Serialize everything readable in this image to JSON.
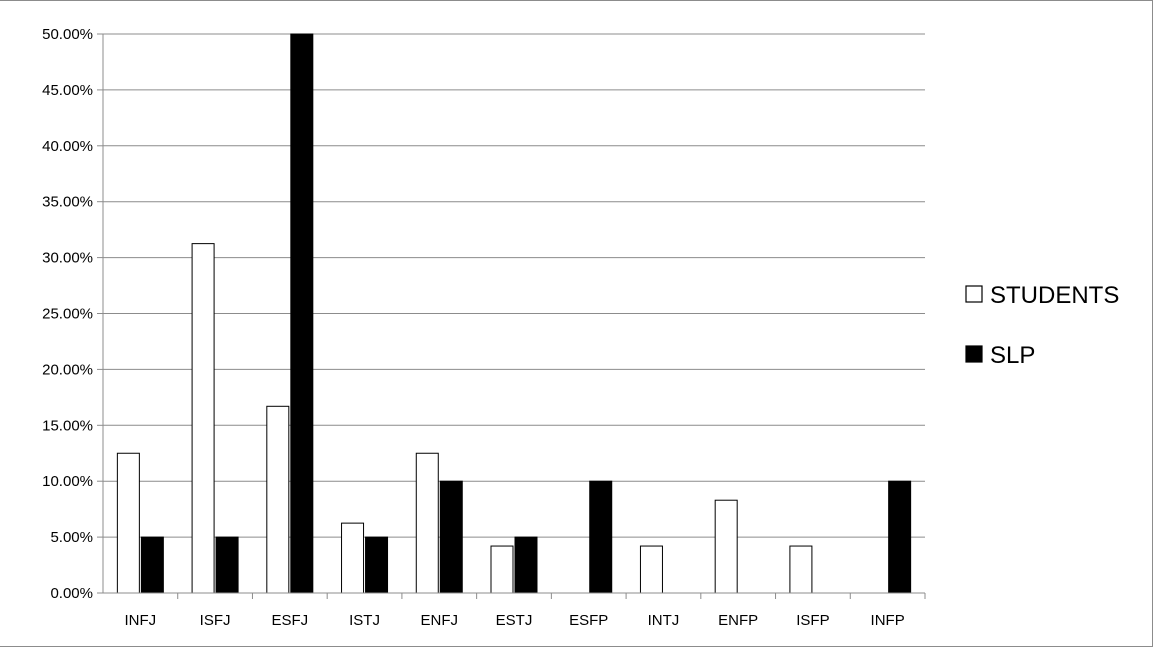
{
  "chart_data": {
    "type": "bar",
    "title": "",
    "xlabel": "",
    "ylabel": "",
    "ylim": [
      0,
      0.5
    ],
    "y_ticks": [
      0,
      0.05,
      0.1,
      0.15,
      0.2,
      0.25,
      0.3,
      0.35,
      0.4,
      0.45,
      0.5
    ],
    "y_tick_labels": [
      "0.00%",
      "5.00%",
      "10.00%",
      "15.00%",
      "20.00%",
      "25.00%",
      "30.00%",
      "35.00%",
      "40.00%",
      "45.00%",
      "50.00%"
    ],
    "grid": true,
    "legend_position": "right",
    "categories": [
      "INFJ",
      "ISFJ",
      "ESFJ",
      "ISTJ",
      "ENFJ",
      "ESTJ",
      "ESFP",
      "INTJ",
      "ENFP",
      "ISFP",
      "INFP"
    ],
    "series": [
      {
        "name": "STUDENTS",
        "color": "#ffffff",
        "stroke": "#000000",
        "values": [
          0.125,
          0.3125,
          0.167,
          0.0625,
          0.125,
          0.042,
          0,
          0.042,
          0.083,
          0.042,
          0
        ]
      },
      {
        "name": "SLP",
        "color": "#000000",
        "stroke": "#000000",
        "values": [
          0.05,
          0.05,
          0.5,
          0.05,
          0.1,
          0.05,
          0.1,
          0,
          0,
          0,
          0.1
        ]
      }
    ]
  }
}
